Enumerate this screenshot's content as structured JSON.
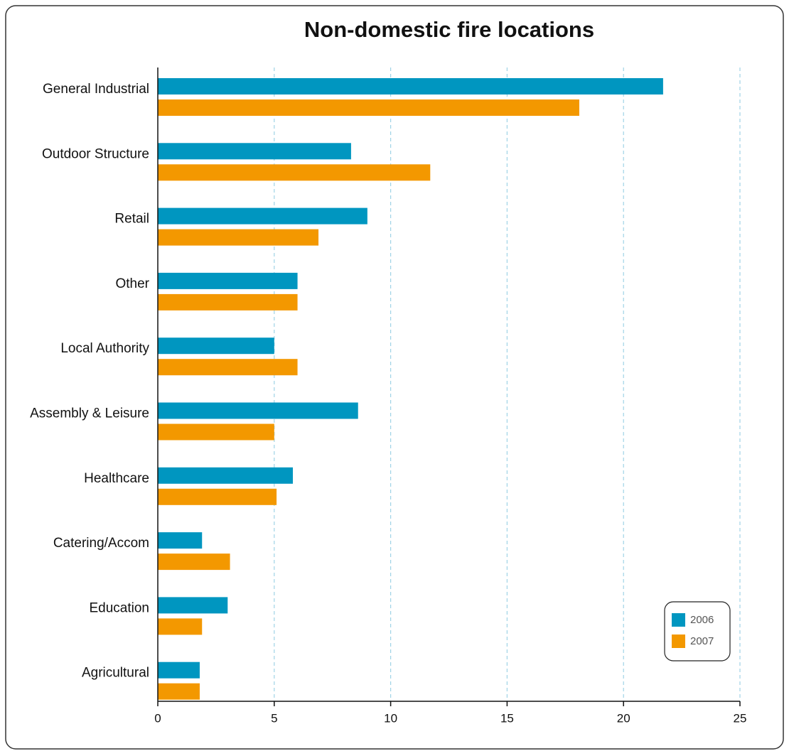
{
  "chart_data": {
    "type": "bar",
    "orientation": "horizontal",
    "title": "Non-domestic fire locations",
    "categories": [
      "General Industrial",
      "Outdoor Structure",
      "Retail",
      "Other",
      "Local Authority",
      "Assembly & Leisure",
      "Healthcare",
      "Catering/Accom",
      "Education",
      "Agricultural"
    ],
    "series": [
      {
        "name": "2006",
        "color": "#0096c0",
        "values": [
          21.7,
          8.3,
          9.0,
          6.0,
          5.0,
          8.6,
          5.8,
          1.9,
          3.0,
          1.8
        ]
      },
      {
        "name": "2007",
        "color": "#f39800",
        "values": [
          18.1,
          11.7,
          6.9,
          6.0,
          6.0,
          5.0,
          5.1,
          3.1,
          1.9,
          1.8
        ]
      }
    ],
    "xlim": [
      0,
      25
    ],
    "xticks": [
      0,
      5,
      10,
      15,
      20,
      25
    ],
    "grid": true,
    "legend": "lower right"
  }
}
